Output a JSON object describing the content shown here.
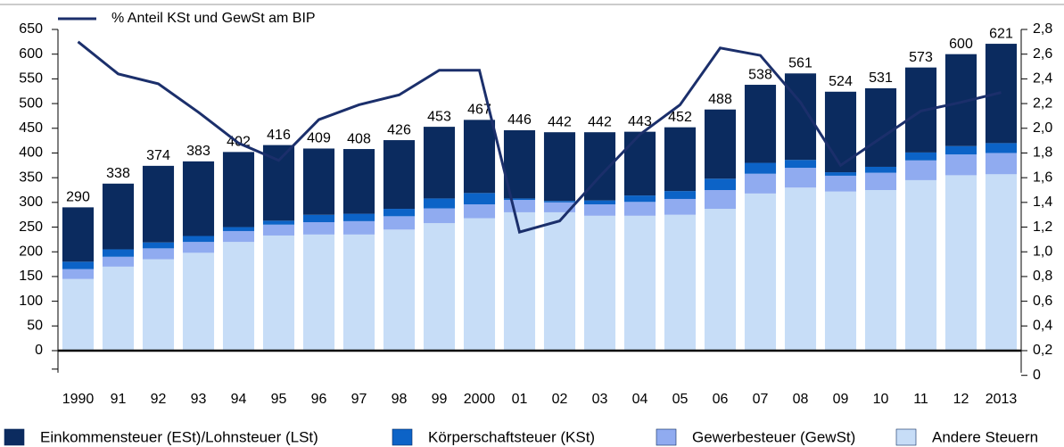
{
  "chart_data": {
    "type": "bar",
    "categories": [
      "1990",
      "91",
      "92",
      "93",
      "94",
      "95",
      "96",
      "97",
      "98",
      "99",
      "2000",
      "01",
      "02",
      "03",
      "04",
      "05",
      "06",
      "07",
      "08",
      "09",
      "10",
      "11",
      "12",
      "2013"
    ],
    "series": [
      {
        "name": "Einkommensteuer (ESt)/Lohnsteuer (LSt)",
        "color": "#0b2b5f",
        "values": [
          110,
          133,
          155,
          151,
          152,
          153,
          134,
          131,
          139,
          145,
          148,
          138,
          139,
          138,
          129,
          129,
          140,
          158,
          175,
          163,
          159,
          172,
          186,
          201
        ]
      },
      {
        "name": "Körperschaftsteuer (KSt)",
        "color": "#0c63c7",
        "values": [
          15,
          15,
          12,
          12,
          8,
          8,
          15,
          15,
          15,
          20,
          23,
          3,
          3,
          8,
          13,
          16,
          23,
          22,
          16,
          7,
          12,
          16,
          17,
          20
        ]
      },
      {
        "name": "Gewerbesteuer (GewSt)",
        "color": "#90abf0",
        "values": [
          20,
          20,
          22,
          22,
          22,
          22,
          25,
          27,
          27,
          30,
          28,
          25,
          20,
          23,
          28,
          32,
          38,
          40,
          40,
          32,
          35,
          40,
          42,
          43
        ]
      },
      {
        "name": "Andere Steuern",
        "color": "#c7ddf7",
        "values": [
          145,
          170,
          185,
          198,
          220,
          233,
          235,
          235,
          245,
          258,
          268,
          280,
          280,
          273,
          273,
          275,
          287,
          318,
          330,
          322,
          325,
          345,
          355,
          357
        ]
      }
    ],
    "totals": [
      290,
      338,
      374,
      383,
      402,
      416,
      409,
      408,
      426,
      453,
      467,
      446,
      442,
      442,
      443,
      452,
      488,
      538,
      561,
      524,
      531,
      573,
      600,
      621
    ],
    "line": {
      "name": "% Anteil KSt und GewSt am BIP",
      "color": "#1b2f6b",
      "axis": "y2",
      "values": [
        2.7,
        2.44,
        2.36,
        2.13,
        1.88,
        1.74,
        2.07,
        2.19,
        2.27,
        2.47,
        2.47,
        1.16,
        1.25,
        1.61,
        1.95,
        2.19,
        2.65,
        2.59,
        2.21,
        1.7,
        1.92,
        2.14,
        2.21,
        2.29
      ]
    },
    "ylim": [
      -50,
      650
    ],
    "yticks": [
      0,
      50,
      100,
      150,
      200,
      250,
      300,
      350,
      400,
      450,
      500,
      550,
      600,
      650
    ],
    "y2lim": [
      0,
      2.8
    ],
    "y2ticks": [
      0,
      {
        "value": 0.2,
        "label": "0,2"
      },
      {
        "value": 0.4,
        "label": "0,4"
      },
      {
        "value": 0.6,
        "label": "0,6"
      },
      {
        "value": 0.8,
        "label": "0,8"
      },
      {
        "value": 1.0,
        "label": "1,0"
      },
      {
        "value": 1.2,
        "label": "1,2"
      },
      {
        "value": 1.4,
        "label": "1,4"
      },
      {
        "value": 1.6,
        "label": "1,6"
      },
      {
        "value": 1.8,
        "label": "1,8"
      },
      {
        "value": 2.0,
        "label": "2,0"
      },
      {
        "value": 2.2,
        "label": "2,2"
      },
      {
        "value": 2.4,
        "label": "2,4"
      },
      {
        "value": 2.6,
        "label": "2,6"
      },
      {
        "value": 2.8,
        "label": "2,8"
      }
    ]
  }
}
